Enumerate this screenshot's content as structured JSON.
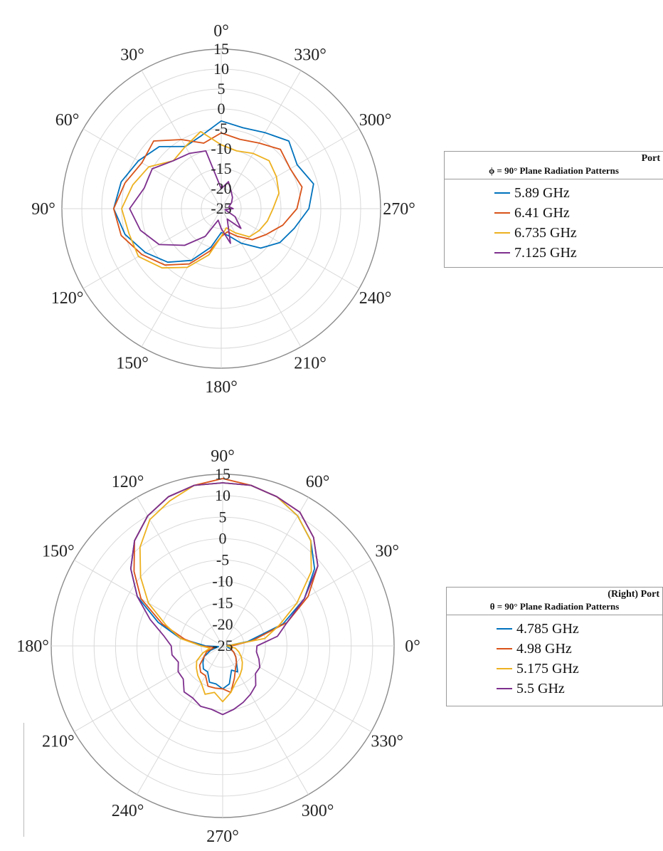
{
  "chart_data": [
    {
      "type": "polar-line",
      "angle_direction": "counterclockwise",
      "zero_angle_at": "top",
      "angle_ticks": [
        "0°",
        "30°",
        "60°",
        "90°",
        "120°",
        "150°",
        "180°",
        "210°",
        "240°",
        "270°",
        "300°",
        "330°"
      ],
      "angle_tick_values": [
        0,
        30,
        60,
        90,
        120,
        150,
        180,
        210,
        240,
        270,
        300,
        330
      ],
      "radial_ticks": [
        "-25",
        "-20",
        "-15",
        "-10",
        "-5",
        "0",
        "5",
        "10",
        "15"
      ],
      "rlim": [
        -25,
        15
      ],
      "grid": true,
      "legend": {
        "placement": "right",
        "title": "Port",
        "subtitle": "ϕ = 90° Plane Radiation Patterns",
        "entries": [
          "5.89 GHz",
          "6.41 GHz",
          "6.735 GHz",
          "7.125 GHz"
        ]
      },
      "series": [
        {
          "name": "5.89 GHz",
          "color": "#0072BD",
          "theta": [
            0,
            15,
            30,
            45,
            60,
            75,
            90,
            105,
            120,
            135,
            150,
            165,
            180,
            195,
            210,
            225,
            240,
            255,
            270,
            285,
            300,
            315,
            330,
            345
          ],
          "r": [
            -3,
            -6,
            -7,
            -3,
            -1,
            1,
            2,
            0,
            -3,
            -6,
            -10,
            -15,
            -19,
            -18,
            -15,
            -11,
            -8,
            -6,
            -3,
            -1,
            -3,
            -1,
            -3,
            -4
          ]
        },
        {
          "name": "6.41 GHz",
          "color": "#D95319",
          "theta": [
            0,
            15,
            30,
            45,
            60,
            75,
            90,
            105,
            120,
            135,
            150,
            165,
            180,
            195,
            210,
            225,
            240,
            255,
            270,
            285,
            300,
            315,
            330,
            345
          ],
          "r": [
            -6,
            -8,
            -5,
            -1,
            -2,
            0,
            2,
            1,
            -2,
            -5,
            -9,
            -14,
            -18,
            -19,
            -17,
            -14,
            -12,
            -9,
            -6,
            -4,
            -5,
            -4,
            -6,
            -7
          ]
        },
        {
          "name": "6.735 GHz",
          "color": "#EDB120",
          "theta": [
            0,
            15,
            30,
            45,
            60,
            75,
            90,
            105,
            120,
            135,
            150,
            165,
            180,
            195,
            210,
            225,
            240,
            255,
            270,
            285,
            300,
            315,
            330,
            345
          ],
          "r": [
            -9,
            -5,
            -7,
            -8,
            -4,
            -2,
            0,
            -1,
            -1,
            -4,
            -8,
            -13,
            -18,
            -20,
            -18,
            -15,
            -14,
            -13,
            -12,
            -10,
            -9,
            -8,
            -9,
            -10
          ]
        },
        {
          "name": "7.125 GHz",
          "color": "#7E2F8E",
          "theta": [
            0,
            15,
            30,
            45,
            60,
            75,
            90,
            105,
            120,
            135,
            150,
            165,
            180,
            195,
            210,
            225,
            240,
            255,
            270,
            285,
            300,
            315,
            330,
            345
          ],
          "r": [
            -20,
            -10,
            -9,
            -8,
            -5,
            -5,
            -2,
            -4,
            -7,
            -12,
            -17,
            -22,
            -20,
            -16,
            -22,
            -18,
            -21,
            -24,
            -22,
            -23,
            -22,
            -21,
            -20,
            -18
          ]
        }
      ]
    },
    {
      "type": "polar-line",
      "angle_direction": "counterclockwise",
      "zero_angle_at": "right",
      "angle_ticks": [
        "0°",
        "30°",
        "60°",
        "90°",
        "120°",
        "150°",
        "180°",
        "210°",
        "240°",
        "270°",
        "300°",
        "330°"
      ],
      "angle_tick_values": [
        0,
        30,
        60,
        90,
        120,
        150,
        180,
        210,
        240,
        270,
        300,
        330
      ],
      "radial_ticks": [
        "-25",
        "-20",
        "-15",
        "-10",
        "-5",
        "0",
        "5",
        "10",
        "15"
      ],
      "rlim": [
        -25,
        15
      ],
      "grid": true,
      "legend": {
        "placement": "right",
        "title": "(Right) Port",
        "subtitle": "θ = 90° Plane Radiation Patterns",
        "entries": [
          "4.785 GHz",
          "4.98 GHz",
          "5.175 GHz",
          "5.5 GHz"
        ]
      },
      "series": [
        {
          "name": "4.785 GHz",
          "color": "#0072BD",
          "theta": [
            0,
            10,
            20,
            30,
            40,
            50,
            60,
            70,
            80,
            90,
            100,
            110,
            120,
            130,
            140,
            150,
            160,
            170,
            180,
            190,
            200,
            210,
            220,
            230,
            240,
            250,
            260,
            270,
            280,
            290,
            300,
            310,
            320,
            330,
            340,
            350
          ],
          "r": [
            -24,
            -19,
            -10,
            -3,
            3,
            7,
            10,
            12,
            13,
            13,
            13,
            12,
            10,
            7,
            3,
            -2,
            -9,
            -15,
            -21,
            -24,
            -22,
            -20,
            -19,
            -18,
            -18,
            -16,
            -16,
            -15,
            -16,
            -19,
            -18,
            -20,
            -21,
            -22,
            -23,
            -24
          ]
        },
        {
          "name": "4.98 GHz",
          "color": "#D95319",
          "theta": [
            0,
            10,
            20,
            30,
            40,
            50,
            60,
            70,
            80,
            90,
            100,
            110,
            120,
            130,
            140,
            150,
            160,
            170,
            180,
            190,
            200,
            210,
            220,
            230,
            240,
            250,
            260,
            270,
            280,
            290,
            300,
            310,
            320,
            330,
            340,
            350
          ],
          "r": [
            -23,
            -18,
            -9,
            -2,
            4,
            8,
            11,
            12,
            13,
            14,
            13,
            12,
            10,
            7,
            2,
            -3,
            -10,
            -16,
            -20,
            -23,
            -21,
            -20,
            -18,
            -17,
            -17,
            -15,
            -15,
            -15,
            -14,
            -17,
            -19,
            -20,
            -21,
            -22,
            -23,
            -23
          ]
        },
        {
          "name": "5.175 GHz",
          "color": "#EDB120",
          "theta": [
            0,
            10,
            20,
            30,
            40,
            50,
            60,
            70,
            80,
            90,
            100,
            110,
            120,
            130,
            140,
            150,
            160,
            170,
            180,
            190,
            200,
            210,
            220,
            230,
            240,
            250,
            260,
            270,
            280,
            290,
            300,
            310,
            320,
            330,
            340,
            350
          ],
          "r": [
            -24,
            -15,
            -11,
            -5,
            2,
            7,
            10,
            12,
            13,
            13,
            13,
            11,
            9,
            5,
            0,
            -5,
            -11,
            -15,
            -20,
            -22,
            -20,
            -18,
            -17,
            -16,
            -15,
            -13,
            -14,
            -12,
            -14,
            -16,
            -17,
            -18,
            -19,
            -20,
            -21,
            -22
          ]
        },
        {
          "name": "5.5 GHz",
          "color": "#7E2F8E",
          "theta": [
            0,
            10,
            20,
            30,
            40,
            50,
            60,
            70,
            80,
            90,
            100,
            110,
            120,
            130,
            140,
            150,
            160,
            170,
            180,
            190,
            200,
            210,
            220,
            230,
            240,
            250,
            260,
            270,
            280,
            290,
            300,
            310,
            320,
            330,
            340,
            350
          ],
          "r": [
            -17,
            -12,
            -9,
            -3,
            4,
            8,
            11,
            12,
            13,
            13,
            13,
            12,
            10,
            7,
            3,
            -2,
            -7,
            -11,
            -13,
            -13,
            -14,
            -13,
            -13,
            -11,
            -11,
            -10,
            -10,
            -9,
            -10,
            -11,
            -12,
            -13,
            -15,
            -15,
            -16,
            -17
          ]
        }
      ]
    }
  ]
}
